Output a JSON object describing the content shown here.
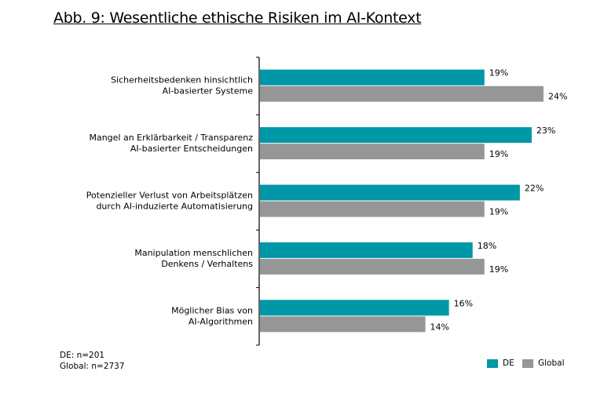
{
  "title": "Abb. 9: Wesentliche ethische Risiken im AI-Kontext",
  "notes": [
    "DE: n=201",
    "Global: n=2737"
  ],
  "chart_data": {
    "type": "bar",
    "orientation": "horizontal",
    "categories": [
      [
        "Sicherheitsbedenken hinsichtlich",
        "AI-basierter Systeme"
      ],
      [
        "Mangel an Erklärbarkeit / Transparenz",
        "AI-basierter Entscheidungen"
      ],
      [
        "Potenzieller Verlust von Arbeitsplätzen",
        "durch AI-induzierte Automatisierung"
      ],
      [
        "Manipulation menschlichen",
        "Denkens / Verhaltens"
      ],
      [
        "Möglicher Bias von",
        "AI-Algorithmen"
      ]
    ],
    "series": [
      {
        "name": "DE",
        "color": "#0097a7",
        "values": [
          19,
          23,
          22,
          18,
          16
        ]
      },
      {
        "name": "Global",
        "color": "#969696",
        "values": [
          24,
          19,
          19,
          19,
          14
        ]
      }
    ],
    "value_suffix": "%",
    "xlim": [
      0,
      24
    ],
    "grid": false,
    "legend": "bottom-right"
  }
}
